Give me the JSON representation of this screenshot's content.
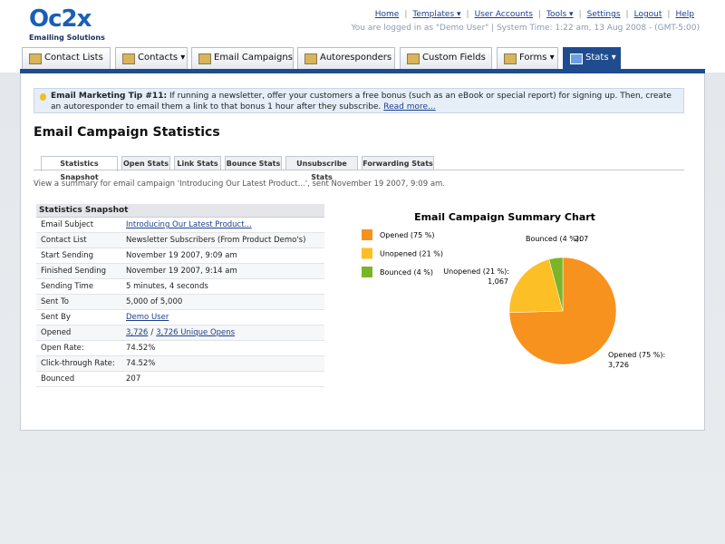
{
  "header": {
    "logo": "Oc2x",
    "tagline": "Emailing Solutions",
    "links": [
      "Home",
      "Templates ▾",
      "User Accounts",
      "Tools ▾",
      "Settings",
      "Logout",
      "Help"
    ],
    "status": "You are logged in as \"Demo User\" | System Time: 1:22 am, 13 Aug 2008 - (GMT-5:00)"
  },
  "nav": {
    "tabs": [
      "Contact Lists ▾",
      "Contacts ▾",
      "Email Campaigns ▾",
      "Autoresponders ▾",
      "Custom Fields ▾",
      "Forms ▾",
      "Stats ▾"
    ],
    "active": 6
  },
  "tip": {
    "title": "Email Marketing Tip #11:",
    "text": "If running a newsletter, offer your customers a free bonus (such as an eBook or special report) for signing up. Then, create an autoresponder to email them a link to that bonus 1 hour after they subscribe.",
    "link": "Read more..."
  },
  "heading": "Email Campaign Statistics",
  "subtabs": {
    "tabs": [
      "Statistics Snapshot",
      "Open Stats",
      "Link Stats",
      "Bounce Stats",
      "Unsubscribe Stats",
      "Forwarding Stats"
    ],
    "active": 0
  },
  "description": "View a summary for email campaign 'Introducing Our Latest Product...', sent November 19 2007, 9:09 am.",
  "table": {
    "title": "Statistics Snapshot",
    "rows": [
      {
        "label": "Email Subject",
        "links": [
          "Introducing Our Latest Product..."
        ]
      },
      {
        "label": "Contact List",
        "value": "Newsletter Subscribers (From Product Demo's)"
      },
      {
        "label": "Start Sending",
        "value": "November 19 2007, 9:09 am"
      },
      {
        "label": "Finished Sending",
        "value": "November 19 2007, 9:14 am"
      },
      {
        "label": "Sending Time",
        "value": "5 minutes, 4 seconds"
      },
      {
        "label": "Sent To",
        "value": "5,000 of 5,000"
      },
      {
        "label": "Sent By",
        "links": [
          "Demo User"
        ]
      },
      {
        "label": "Opened",
        "links": [
          "3,726",
          "3,726 Unique Opens"
        ],
        "separator": "/"
      },
      {
        "label": "Open Rate:",
        "value": "74.52%"
      },
      {
        "label": "Click-through Rate:",
        "value": "74.52%"
      },
      {
        "label": "Bounced",
        "value": "207"
      }
    ]
  },
  "chart_data": {
    "type": "pie",
    "title": "Email Campaign Summary Chart",
    "categories": [
      "Opened (75 %)",
      "Unopened (21 %)",
      "Bounced (4 %)"
    ],
    "slice_labels": [
      "Opened (75 %):",
      "Unopened (21 %):",
      "Bounced (4 %):"
    ],
    "values": [
      3726,
      1067,
      207
    ],
    "value_labels": [
      "3,726",
      "1,067",
      "207"
    ],
    "colors": [
      "#f7921e",
      "#fdbf26",
      "#7cb428"
    ]
  }
}
